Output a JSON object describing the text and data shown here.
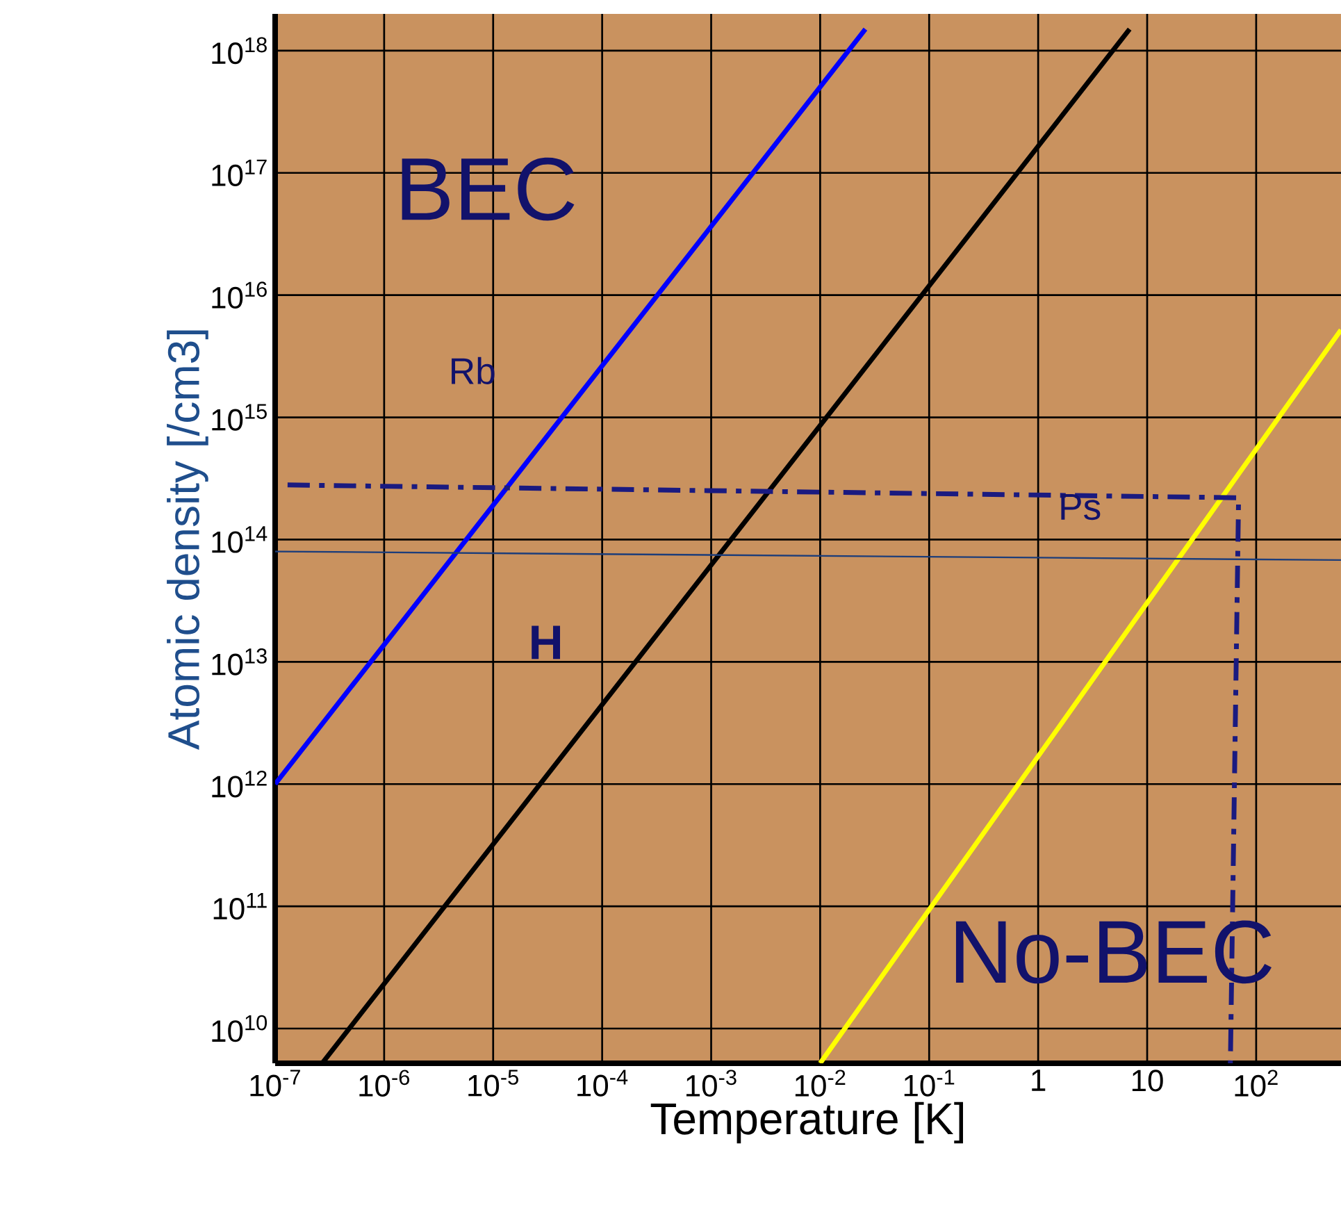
{
  "chart_data": {
    "type": "line",
    "xlabel": "Temperature [K]",
    "ylabel": "Atomic density [/cm3]",
    "log": "xy",
    "grid": true,
    "xlim": [
      1e-07,
      600
    ],
    "ylim": [
      5200000000.0,
      2e+18
    ],
    "xticks": [
      {
        "value": 1e-07,
        "label": "10$^{-7}$"
      },
      {
        "value": 1e-06,
        "label": "10$^{-6}$"
      },
      {
        "value": 1e-05,
        "label": "10$^{-5}$"
      },
      {
        "value": 0.0001,
        "label": "10$^{-4}$"
      },
      {
        "value": 0.001,
        "label": "10$^{-3}$"
      },
      {
        "value": 0.01,
        "label": "10$^{-2}$"
      },
      {
        "value": 0.1,
        "label": "10$^{-1}$"
      },
      1,
      10,
      {
        "value": 100,
        "label": "10$^{2}$"
      }
    ],
    "yticks": [
      {
        "value": 10000000000.0,
        "label": "10$^{10}$"
      },
      {
        "value": 100000000000.0,
        "label": "10$^{11}$"
      },
      {
        "value": 1000000000000.0,
        "label": "10$^{12}$"
      },
      {
        "value": 10000000000000.0,
        "label": "10$^{13}$"
      },
      {
        "value": 100000000000000.0,
        "label": "10$^{14}$"
      },
      {
        "value": 1000000000000000.0,
        "label": "10$^{15}$"
      },
      {
        "value": 1e+16,
        "label": "10$^{16}$"
      },
      {
        "value": 1e+17,
        "label": "10$^{17}$"
      },
      {
        "value": 1e+18,
        "label": "10$^{18}$"
      }
    ],
    "series": [
      {
        "color": "#0000ff",
        "x": [
          1e-07,
          0.026
        ],
        "values": [
          1000000000000.0,
          1.5e+18
        ]
      },
      {
        "color": "#000000",
        "x": [
          2.7e-07,
          6.9
        ],
        "values": [
          5200000000.0,
          1.5e+18
        ]
      },
      {
        "color": "#ffff00",
        "x": [
          0.01,
          600
        ],
        "values": [
          5200000000.0,
          5200000000000000.0
        ]
      },
      {
        "color": "#1c3d7a",
        "x": [
          1e-07,
          600
        ],
        "values": [
          80000000000000.0,
          68000000000000.0
        ]
      },
      {
        "color": "#1a1a80",
        "line_style": "dashed",
        "x": [
          1.3e-07,
          69,
          58
        ],
        "values": [
          280000000000000.0,
          220000000000000.0,
          5200000000.0
        ]
      }
    ],
    "annotations": [
      "BEC",
      "Rb",
      "H",
      "Ps",
      "No-BEC"
    ]
  }
}
